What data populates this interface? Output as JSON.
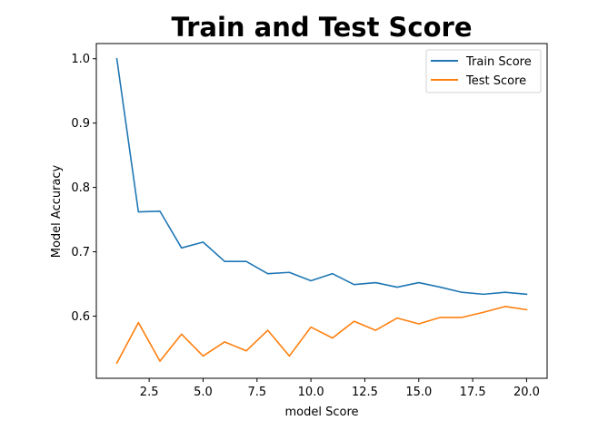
{
  "chart_data": {
    "type": "line",
    "title": "Train and Test Score",
    "xlabel": "model Score",
    "ylabel": "Model Accuracy",
    "x": [
      1,
      2,
      3,
      4,
      5,
      6,
      7,
      8,
      9,
      10,
      11,
      12,
      13,
      14,
      15,
      16,
      17,
      18,
      19,
      20
    ],
    "series": [
      {
        "name": "Train Score",
        "color": "#1f77b4",
        "values": [
          1.0,
          0.762,
          0.763,
          0.706,
          0.715,
          0.685,
          0.685,
          0.666,
          0.668,
          0.655,
          0.666,
          0.649,
          0.652,
          0.645,
          0.652,
          0.645,
          0.637,
          0.634,
          0.637,
          0.634
        ]
      },
      {
        "name": "Test Score",
        "color": "#ff7f0e",
        "values": [
          0.527,
          0.59,
          0.53,
          0.572,
          0.538,
          0.56,
          0.546,
          0.578,
          0.538,
          0.583,
          0.566,
          0.592,
          0.578,
          0.597,
          0.588,
          0.598,
          0.598,
          0.606,
          0.615,
          0.61
        ]
      }
    ],
    "xlim": [
      0.05,
      20.95
    ],
    "ylim": [
      0.5034,
      1.0236
    ],
    "xticks": [
      2.5,
      5.0,
      7.5,
      10.0,
      12.5,
      15.0,
      17.5,
      20.0
    ],
    "xtick_labels": [
      "2.5",
      "5.0",
      "7.5",
      "10.0",
      "12.5",
      "15.0",
      "17.5",
      "20.0"
    ],
    "yticks": [
      0.6,
      0.7,
      0.8,
      0.9,
      1.0
    ],
    "ytick_labels": [
      "0.6",
      "0.7",
      "0.8",
      "0.9",
      "1.0"
    ],
    "legend": "top-right",
    "grid": false
  }
}
